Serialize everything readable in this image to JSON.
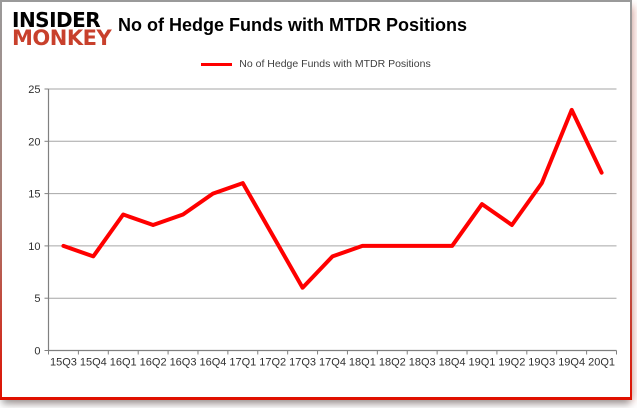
{
  "brand": {
    "line1": "INSIDER",
    "line2": "MONKEY",
    "color_line1": "#000000",
    "color_line2": "#c8402c"
  },
  "header": {
    "title": "No of Hedge Funds with MTDR Positions"
  },
  "legend": {
    "label": "No of Hedge Funds with MTDR Positions",
    "swatch_color": "#ff0000"
  },
  "chart_data": {
    "type": "line",
    "title": "No of Hedge Funds with MTDR Positions",
    "categories": [
      "15Q3",
      "15Q4",
      "16Q1",
      "16Q2",
      "16Q3",
      "16Q4",
      "17Q1",
      "17Q2",
      "17Q3",
      "17Q4",
      "18Q1",
      "18Q2",
      "18Q3",
      "18Q4",
      "19Q1",
      "19Q2",
      "19Q3",
      "19Q4",
      "20Q1"
    ],
    "series": [
      {
        "name": "No of Hedge Funds with MTDR Positions",
        "values": [
          10,
          9,
          13,
          12,
          13,
          15,
          16,
          11,
          6,
          9,
          10,
          10,
          10,
          10,
          14,
          12,
          16,
          23,
          17
        ],
        "color": "#ff0000"
      }
    ],
    "xlabel": "",
    "ylabel": "",
    "ylim": [
      0,
      25
    ],
    "yticks": [
      0,
      5,
      10,
      15,
      20,
      25
    ],
    "grid": true,
    "legend_position": "top-center",
    "line_width": 4,
    "axis_color": "#808080",
    "grid_color": "#a6a6a6",
    "label_color": "#303030",
    "tick_font_size": 11
  }
}
